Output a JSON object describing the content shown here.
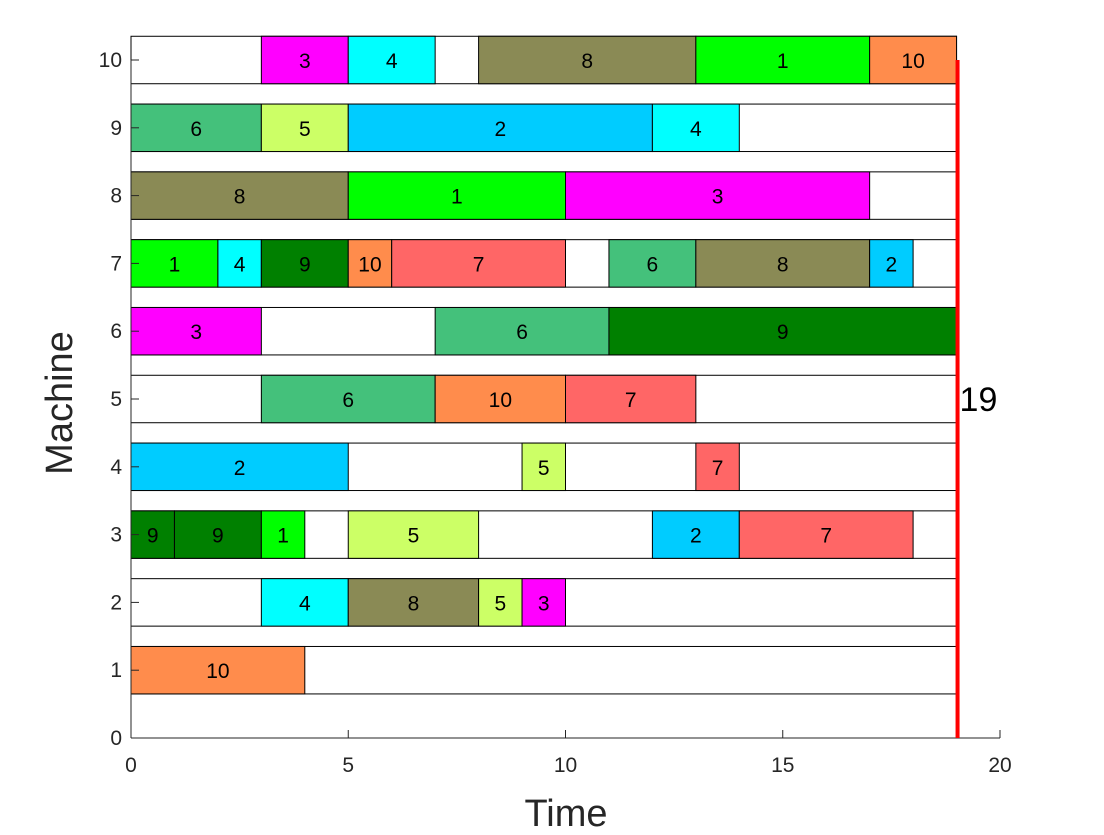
{
  "chart_data": {
    "type": "gantt",
    "xlabel": "Time",
    "ylabel": "Machine",
    "xlim": [
      0,
      20
    ],
    "ylim": [
      0,
      10
    ],
    "xticks": [
      "0",
      "5",
      "10",
      "15",
      "20"
    ],
    "yticks": [
      "0",
      "1",
      "2",
      "3",
      "4",
      "5",
      "6",
      "7",
      "8",
      "9",
      "10"
    ],
    "grid": false,
    "makespan": 19,
    "makespan_label": "19",
    "makespan_color": "#ff0000",
    "job_colors": {
      "1": "#00ff00",
      "2": "#00ccff",
      "3": "#ff00ff",
      "4": "#00ffff",
      "5": "#ccff66",
      "6": "#44c17b",
      "7": "#ff6666",
      "8": "#8a8a55",
      "9": "#008000",
      "10": "#ff8c4c"
    },
    "machines": [
      {
        "machine": 1,
        "operations": [
          {
            "job": "10",
            "start": 0,
            "end": 4
          }
        ]
      },
      {
        "machine": 2,
        "operations": [
          {
            "job": "4",
            "start": 3,
            "end": 5
          },
          {
            "job": "8",
            "start": 5,
            "end": 8
          },
          {
            "job": "5",
            "start": 8,
            "end": 9
          },
          {
            "job": "3",
            "start": 9,
            "end": 10
          }
        ]
      },
      {
        "machine": 3,
        "operations": [
          {
            "job": "9",
            "start": 0,
            "end": 1
          },
          {
            "job": "9",
            "start": 1,
            "end": 3
          },
          {
            "job": "1",
            "start": 3,
            "end": 4
          },
          {
            "job": "5",
            "start": 5,
            "end": 8
          },
          {
            "job": "2",
            "start": 12,
            "end": 14
          },
          {
            "job": "7",
            "start": 14,
            "end": 18
          }
        ]
      },
      {
        "machine": 4,
        "operations": [
          {
            "job": "2",
            "start": 0,
            "end": 5
          },
          {
            "job": "5",
            "start": 9,
            "end": 10
          },
          {
            "job": "7",
            "start": 13,
            "end": 14
          }
        ]
      },
      {
        "machine": 5,
        "operations": [
          {
            "job": "6",
            "start": 3,
            "end": 7
          },
          {
            "job": "10",
            "start": 7,
            "end": 10
          },
          {
            "job": "7",
            "start": 10,
            "end": 13
          }
        ]
      },
      {
        "machine": 6,
        "operations": [
          {
            "job": "3",
            "start": 0,
            "end": 3
          },
          {
            "job": "6",
            "start": 7,
            "end": 11
          },
          {
            "job": "9",
            "start": 11,
            "end": 19
          }
        ]
      },
      {
        "machine": 7,
        "operations": [
          {
            "job": "1",
            "start": 0,
            "end": 2
          },
          {
            "job": "4",
            "start": 2,
            "end": 3
          },
          {
            "job": "9",
            "start": 3,
            "end": 5
          },
          {
            "job": "10",
            "start": 5,
            "end": 6
          },
          {
            "job": "7",
            "start": 6,
            "end": 10
          },
          {
            "job": "6",
            "start": 11,
            "end": 13
          },
          {
            "job": "8",
            "start": 13,
            "end": 17
          },
          {
            "job": "2",
            "start": 17,
            "end": 18
          }
        ]
      },
      {
        "machine": 8,
        "operations": [
          {
            "job": "8",
            "start": 0,
            "end": 5
          },
          {
            "job": "1",
            "start": 5,
            "end": 10
          },
          {
            "job": "3",
            "start": 10,
            "end": 17
          }
        ]
      },
      {
        "machine": 9,
        "operations": [
          {
            "job": "6",
            "start": 0,
            "end": 3
          },
          {
            "job": "5",
            "start": 3,
            "end": 5
          },
          {
            "job": "2",
            "start": 5,
            "end": 12
          },
          {
            "job": "4",
            "start": 12,
            "end": 14
          }
        ]
      },
      {
        "machine": 10,
        "operations": [
          {
            "job": "3",
            "start": 3,
            "end": 5
          },
          {
            "job": "4",
            "start": 5,
            "end": 7
          },
          {
            "job": "8",
            "start": 8,
            "end": 13
          },
          {
            "job": "1",
            "start": 13,
            "end": 17
          },
          {
            "job": "10",
            "start": 17,
            "end": 19
          }
        ]
      }
    ]
  }
}
